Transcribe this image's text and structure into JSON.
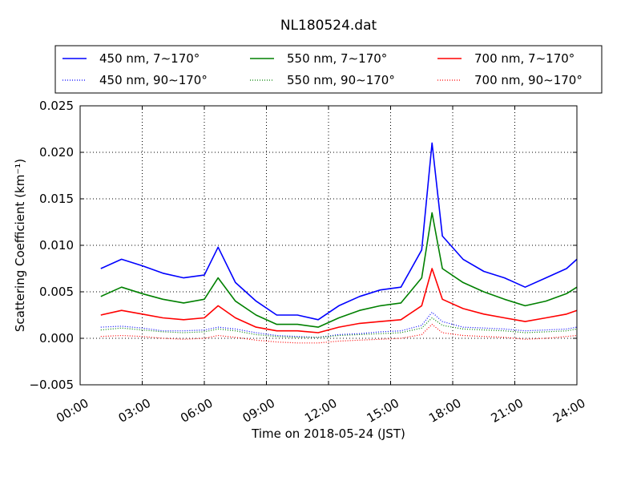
{
  "chart_data": {
    "type": "line",
    "title": "NL180524.dat",
    "xlabel": "Time on 2018-05-24 (JST)",
    "ylabel": "Scattering Coefficient (km⁻¹)",
    "xlim": [
      "00:00",
      "24:00"
    ],
    "ylim": [
      -0.005,
      0.025
    ],
    "x_ticks": [
      "00:00",
      "03:00",
      "06:00",
      "09:00",
      "12:00",
      "15:00",
      "18:00",
      "21:00",
      "24:00"
    ],
    "y_ticks": [
      "−0.005",
      "0.000",
      "0.005",
      "0.010",
      "0.015",
      "0.020",
      "0.025"
    ],
    "grid": true,
    "legend_position": "top",
    "legend_columns": 3,
    "x": [
      "01:00",
      "02:00",
      "03:00",
      "04:00",
      "05:00",
      "06:00",
      "06:40",
      "07:30",
      "08:30",
      "09:30",
      "10:30",
      "11:30",
      "12:30",
      "13:30",
      "14:30",
      "15:30",
      "16:30",
      "17:00",
      "17:30",
      "18:30",
      "19:30",
      "20:30",
      "21:30",
      "22:30",
      "23:30",
      "24:00"
    ],
    "series": [
      {
        "name": "450 nm, 7∼170°",
        "color": "#0000ff",
        "style": "solid",
        "values": [
          0.0075,
          0.0085,
          0.0078,
          0.007,
          0.0065,
          0.0068,
          0.0098,
          0.006,
          0.004,
          0.0025,
          0.0025,
          0.002,
          0.0035,
          0.0045,
          0.0052,
          0.0055,
          0.0095,
          0.021,
          0.011,
          0.0085,
          0.0072,
          0.0065,
          0.0055,
          0.0065,
          0.0075,
          0.0085
        ]
      },
      {
        "name": "450 nm, 90∼170°",
        "color": "#0000ff",
        "style": "dotted",
        "values": [
          0.0012,
          0.0013,
          0.0011,
          0.0008,
          0.0008,
          0.0009,
          0.0012,
          0.001,
          0.0006,
          0.0003,
          0.0002,
          0.0001,
          0.0004,
          0.0005,
          0.0007,
          0.0008,
          0.0014,
          0.0028,
          0.0018,
          0.0012,
          0.0011,
          0.001,
          0.0008,
          0.0009,
          0.001,
          0.0012
        ]
      },
      {
        "name": "550 nm, 7∼170°",
        "color": "#008000",
        "style": "solid",
        "values": [
          0.0045,
          0.0055,
          0.0048,
          0.0042,
          0.0038,
          0.0042,
          0.0065,
          0.004,
          0.0025,
          0.0015,
          0.0015,
          0.0012,
          0.0022,
          0.003,
          0.0035,
          0.0038,
          0.0065,
          0.0135,
          0.0075,
          0.006,
          0.005,
          0.0042,
          0.0035,
          0.004,
          0.0048,
          0.0055
        ]
      },
      {
        "name": "550 nm, 90∼170°",
        "color": "#008000",
        "style": "dotted",
        "values": [
          0.0009,
          0.0011,
          0.0009,
          0.0007,
          0.0006,
          0.0007,
          0.001,
          0.0008,
          0.0004,
          0.0002,
          0.0001,
          0.0001,
          0.0003,
          0.0004,
          0.0005,
          0.0006,
          0.0011,
          0.0022,
          0.0014,
          0.001,
          0.0009,
          0.0008,
          0.0006,
          0.0007,
          0.0008,
          0.001
        ]
      },
      {
        "name": "700 nm, 7∼170°",
        "color": "#ff0000",
        "style": "solid",
        "values": [
          0.0025,
          0.003,
          0.0026,
          0.0022,
          0.002,
          0.0022,
          0.0035,
          0.0022,
          0.0012,
          0.0008,
          0.0008,
          0.0006,
          0.0012,
          0.0016,
          0.0018,
          0.002,
          0.0035,
          0.0075,
          0.0042,
          0.0032,
          0.0026,
          0.0022,
          0.0018,
          0.0022,
          0.0026,
          0.003
        ]
      },
      {
        "name": "700 nm, 90∼170°",
        "color": "#ff0000",
        "style": "dotted",
        "values": [
          0.0002,
          0.0003,
          0.0002,
          0.0,
          -0.0001,
          0.0,
          0.0003,
          0.0001,
          -0.0002,
          -0.0004,
          -0.0005,
          -0.0005,
          -0.0003,
          -0.0002,
          -0.0001,
          0.0,
          0.0004,
          0.0015,
          0.0006,
          0.0003,
          0.0002,
          0.0001,
          -0.0001,
          0.0,
          0.0002,
          0.0003
        ]
      }
    ]
  }
}
